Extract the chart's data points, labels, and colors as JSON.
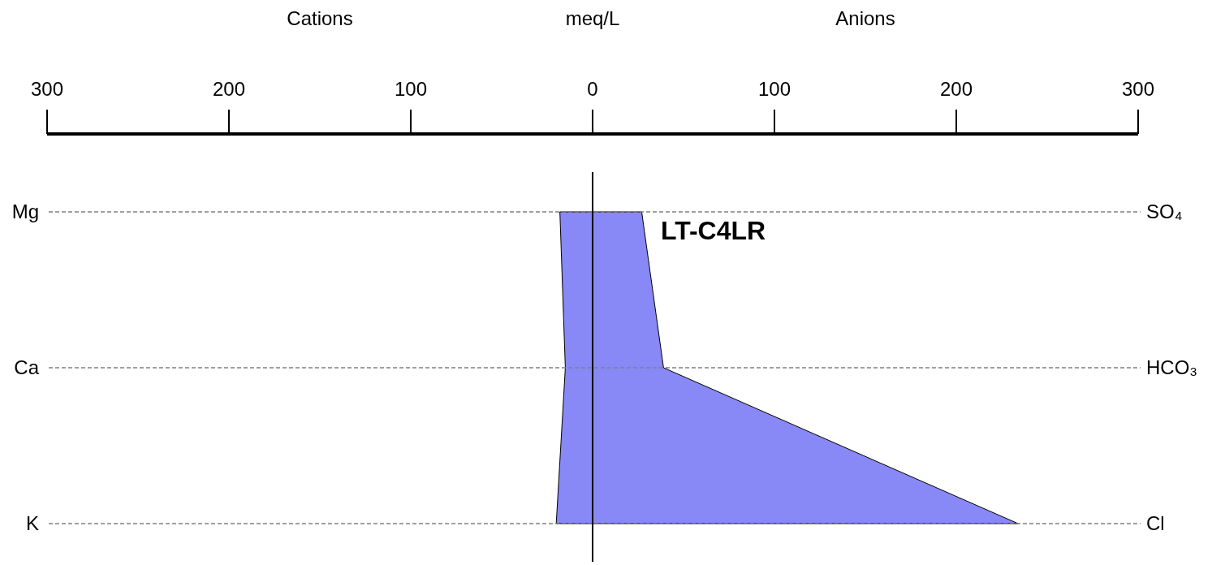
{
  "chart_data": {
    "type": "area",
    "title": "LT-C4LR",
    "xlabel": "meq/L",
    "annotations": [
      "Cations",
      "Anions"
    ],
    "orientation": "horizontal",
    "categories": [
      "Mg",
      "Ca",
      "K"
    ],
    "y2_categories": [
      "SO₄",
      "HCO₃",
      "Cl"
    ],
    "series": [
      {
        "color": "#8888f6",
        "values": [
          -18,
          -15,
          -20
        ]
      },
      {
        "color": "#8888f6",
        "values": [
          27,
          39,
          234
        ]
      }
    ],
    "xlim": [
      -300,
      300
    ],
    "xticks": [
      {
        "value": -300,
        "label": "300"
      },
      {
        "value": -200,
        "label": "200"
      },
      {
        "value": -100,
        "label": "100"
      },
      0,
      100,
      200,
      300
    ],
    "ref_lines": [
      {
        "axis": "x",
        "value": 0,
        "color": "#000000"
      },
      {
        "axis": "y",
        "value": "Mg",
        "color": "#808080",
        "line_style": "dashed"
      },
      {
        "axis": "y",
        "value": "Ca",
        "color": "#808080",
        "line_style": "dashed"
      },
      {
        "axis": "y",
        "value": "K",
        "color": "#808080",
        "line_style": "dashed"
      }
    ]
  }
}
